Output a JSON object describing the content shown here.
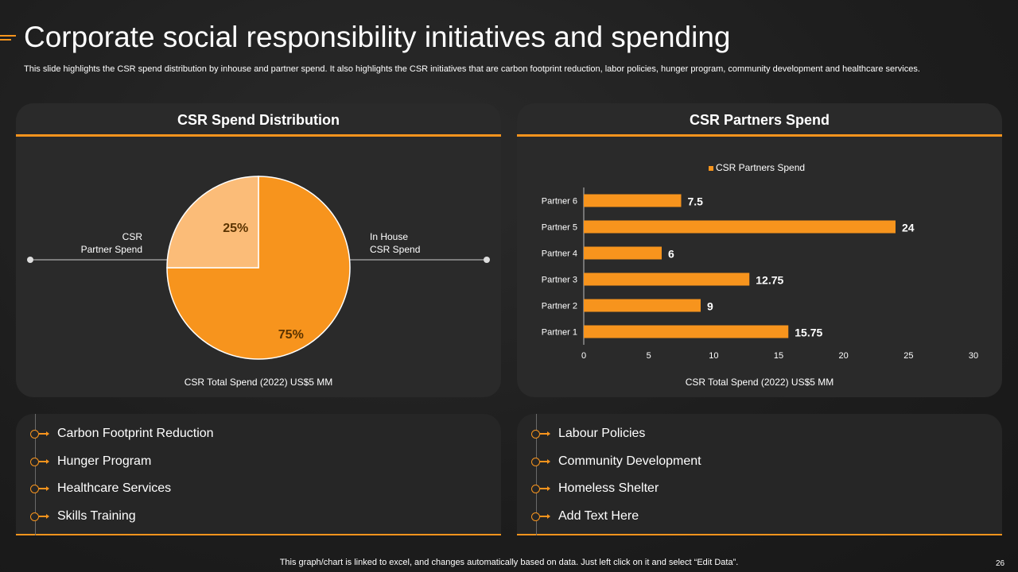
{
  "slide": {
    "title": "Corporate social responsibility initiatives and spending",
    "subtitle": "This slide highlights the CSR spend distribution by inhouse and partner spend. It also highlights the CSR initiatives that are carbon footprint reduction, labor policies, hunger program, community development and healthcare services.",
    "footer_note": "This graph/chart is linked to excel,  and changes automatically based on data. Just left click on it and select “Edit Data”.",
    "page_number": "26",
    "accent_color": "#f7941d"
  },
  "spend_panel": {
    "heading": "CSR Spend Distribution",
    "footnote": "CSR Total Spend (2022) US$5 MM",
    "left_label_line1": "CSR",
    "left_label_line2": "Partner Spend",
    "right_label_line1": "In House",
    "right_label_line2": "CSR Spend"
  },
  "partners_panel": {
    "heading": "CSR Partners Spend",
    "footnote": "CSR Total Spend (2022) US$5 MM"
  },
  "chart_data": [
    {
      "type": "pie",
      "slices": [
        {
          "label": "In House CSR Spend",
          "value": 75,
          "display": "75%",
          "color": "#f7941d"
        },
        {
          "label": "CSR Partner Spend",
          "value": 25,
          "display": "25%",
          "color": "#fbbc78"
        }
      ]
    },
    {
      "type": "bar",
      "orientation": "horizontal",
      "categories": [
        "Partner 1",
        "Partner 2",
        "Partner 3",
        "Partner 4",
        "Partner 5",
        "Partner 6"
      ],
      "series": [
        {
          "name": "CSR Partners Spend",
          "values": [
            15.75,
            9,
            12.75,
            6,
            24,
            7.5
          ],
          "labels": [
            "15.75",
            "9",
            "12.75",
            "6",
            "24",
            "7.5"
          ],
          "color": "#f7941d"
        }
      ],
      "xlim": [
        0,
        30
      ],
      "xticks": [
        0,
        5,
        10,
        15,
        20,
        25,
        30
      ],
      "xtick_labels": [
        "0",
        "5",
        "10",
        "15",
        "20",
        "25",
        "30"
      ],
      "legend_position": "top",
      "grid": false
    }
  ],
  "initiatives_left": [
    {
      "label": "Carbon Footprint Reduction"
    },
    {
      "label": "Hunger Program"
    },
    {
      "label": "Healthcare Services"
    },
    {
      "label": "Skills Training"
    }
  ],
  "initiatives_right": [
    {
      "label": "Labour Policies"
    },
    {
      "label": "Community Development"
    },
    {
      "label": "Homeless Shelter"
    },
    {
      "label": "Add Text Here"
    }
  ]
}
